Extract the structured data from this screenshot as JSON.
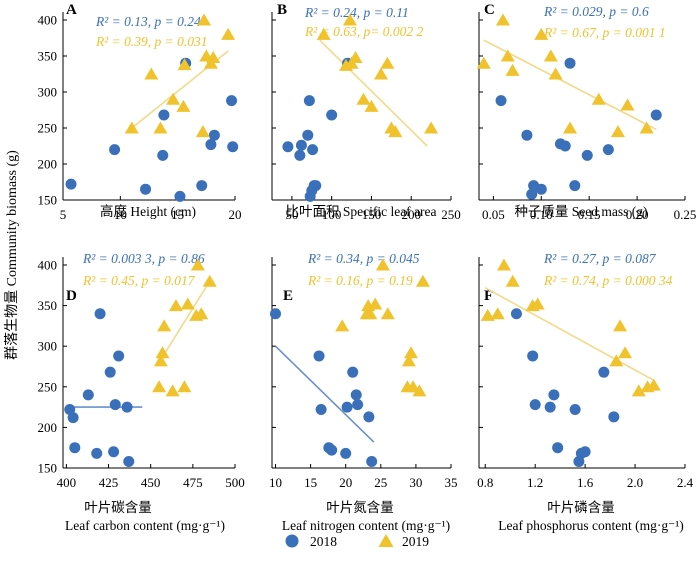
{
  "colors": {
    "s2018": "#3a6fba",
    "s2019": "#f0c22c",
    "trend2018": "#6a8fd0",
    "trend2019": "#f3d98a"
  },
  "ylabel": "群落生物量 Community biomass (g)",
  "legend": [
    {
      "name": "2018",
      "marker": "circle"
    },
    {
      "name": "2019",
      "marker": "triangle"
    }
  ],
  "chart_data": [
    {
      "type": "scatter",
      "letter": "A",
      "xlabel_zh": "高度 Height (cm)",
      "xlabel_en": "",
      "xlim": [
        5,
        20
      ],
      "xticks": [
        5,
        10,
        15,
        20
      ],
      "xtick_labels": [
        "5",
        "10",
        "15",
        "20"
      ],
      "ylim": [
        150,
        400
      ],
      "yticks": [
        150,
        200,
        250,
        300,
        350,
        400
      ],
      "stats": [
        {
          "series": "2018",
          "text": "R² = 0.13, p = 0.24"
        },
        {
          "series": "2019",
          "text": "R² = 0.39, p = 0.031"
        }
      ],
      "trend": [
        null,
        {
          "x": [
            11,
            19.4
          ],
          "y": [
            250,
            357
          ]
        }
      ],
      "series": [
        {
          "name": "2018",
          "points": [
            [
              5.7,
              172
            ],
            [
              9.5,
              220
            ],
            [
              12.2,
              165
            ],
            [
              13.7,
              212
            ],
            [
              13.8,
              268
            ],
            [
              15.2,
              155
            ],
            [
              15.7,
              340
            ],
            [
              17.1,
              170
            ],
            [
              17.9,
              227
            ],
            [
              18.2,
              240
            ],
            [
              19.7,
              288
            ],
            [
              19.8,
              224
            ]
          ]
        },
        {
          "name": "2019",
          "points": [
            [
              11,
              250
            ],
            [
              12.7,
              325
            ],
            [
              13.5,
              250
            ],
            [
              14.6,
              290
            ],
            [
              15.5,
              280
            ],
            [
              15.6,
              338
            ],
            [
              17.2,
              245
            ],
            [
              17.3,
              400
            ],
            [
              17.5,
              350
            ],
            [
              17.9,
              340
            ],
            [
              18.1,
              348
            ],
            [
              19.4,
              380
            ]
          ]
        }
      ]
    },
    {
      "type": "scatter",
      "letter": "B",
      "xlabel_zh": "比叶面积 Specific leaf area",
      "xlabel_en": "",
      "xlim": [
        25,
        250
      ],
      "xticks": [
        50,
        100,
        150,
        200,
        250
      ],
      "xtick_labels": [
        "50",
        "100",
        "150",
        "200",
        "250"
      ],
      "ylim": [
        150,
        400
      ],
      "yticks": [
        150,
        200,
        250,
        300,
        350,
        400
      ],
      "stats": [
        {
          "series": "2018",
          "text": "R² = 0.24, p = 0.11"
        },
        {
          "series": "2019",
          "text": "R² = 0.63, p= 0.002 2"
        }
      ],
      "trend": [
        null,
        {
          "x": [
            85,
            220
          ],
          "y": [
            372,
            225
          ]
        }
      ],
      "series": [
        {
          "name": "2018",
          "points": [
            [
              45,
              224
            ],
            [
              60,
              212
            ],
            [
              62,
              226
            ],
            [
              70,
              240
            ],
            [
              72,
              288
            ],
            [
              73,
              155
            ],
            [
              75,
              163
            ],
            [
              76,
              220
            ],
            [
              78,
              170
            ],
            [
              80,
              170
            ],
            [
              100,
              268
            ],
            [
              120,
              340
            ]
          ]
        },
        {
          "name": "2019",
          "points": [
            [
              90,
              380
            ],
            [
              118,
              337
            ],
            [
              123,
              400
            ],
            [
              125,
              340
            ],
            [
              130,
              348
            ],
            [
              140,
              290
            ],
            [
              150,
              280
            ],
            [
              162,
              325
            ],
            [
              170,
              340
            ],
            [
              175,
              250
            ],
            [
              180,
              245
            ],
            [
              225,
              250
            ]
          ]
        }
      ]
    },
    {
      "type": "scatter",
      "letter": "C",
      "xlabel_zh": "种子质量 Seed mass (g)",
      "xlabel_en": "",
      "xlim": [
        0.035,
        0.25
      ],
      "xticks": [
        0.05,
        0.1,
        0.15,
        0.2,
        0.25
      ],
      "xtick_labels": [
        "0.05",
        "0.10",
        "0.15",
        "0.20",
        "0.25"
      ],
      "ylim": [
        150,
        400
      ],
      "yticks": [
        150,
        200,
        250,
        300,
        350,
        400
      ],
      "stats": [
        {
          "series": "2018",
          "text": "R² = 0.029, p = 0.6"
        },
        {
          "series": "2019",
          "text": "R² = 0.67, p = 0.001 1"
        }
      ],
      "trend": [
        null,
        {
          "x": [
            0.04,
            0.22
          ],
          "y": [
            372,
            248
          ]
        }
      ],
      "series": [
        {
          "name": "2018",
          "points": [
            [
              0.058,
              288
            ],
            [
              0.085,
              240
            ],
            [
              0.09,
              158
            ],
            [
              0.092,
              170
            ],
            [
              0.1,
              165
            ],
            [
              0.12,
              228
            ],
            [
              0.125,
              225
            ],
            [
              0.13,
              340
            ],
            [
              0.135,
              170
            ],
            [
              0.148,
              212
            ],
            [
              0.17,
              220
            ],
            [
              0.22,
              268
            ]
          ]
        },
        {
          "name": "2019",
          "points": [
            [
              0.04,
              340
            ],
            [
              0.06,
              400
            ],
            [
              0.065,
              350
            ],
            [
              0.07,
              330
            ],
            [
              0.1,
              380
            ],
            [
              0.11,
              350
            ],
            [
              0.115,
              325
            ],
            [
              0.13,
              250
            ],
            [
              0.16,
              290
            ],
            [
              0.18,
              245
            ],
            [
              0.19,
              282
            ],
            [
              0.21,
              250
            ]
          ]
        }
      ]
    },
    {
      "type": "scatter",
      "letter": "D",
      "xlabel_zh": "叶片碳含量",
      "xlabel_en": "Leaf carbon content (mg·g⁻¹)",
      "xlim": [
        398,
        500
      ],
      "xticks": [
        400,
        425,
        450,
        475,
        500
      ],
      "xtick_labels": [
        "400",
        "425",
        "450",
        "475",
        "500"
      ],
      "ylim": [
        150,
        400
      ],
      "yticks": [
        150,
        200,
        250,
        300,
        350,
        400
      ],
      "stats": [
        {
          "series": "2018",
          "text": "R² = 0.003 3, p = 0.86"
        },
        {
          "series": "2019",
          "text": "R² = 0.45, p = 0.017"
        }
      ],
      "trend": [
        {
          "x": [
            402,
            445
          ],
          "y": [
            225,
            225
          ]
        },
        {
          "x": [
            455,
            485
          ],
          "y": [
            280,
            380
          ]
        }
      ],
      "series": [
        {
          "name": "2018",
          "points": [
            [
              402,
              222
            ],
            [
              404,
              212
            ],
            [
              405,
              175
            ],
            [
              413,
              240
            ],
            [
              418,
              168
            ],
            [
              420,
              340
            ],
            [
              426,
              268
            ],
            [
              428,
              170
            ],
            [
              429,
              228
            ],
            [
              431,
              288
            ],
            [
              436,
              225
            ],
            [
              437,
              158
            ]
          ]
        },
        {
          "name": "2019",
          "points": [
            [
              455,
              250
            ],
            [
              456,
              282
            ],
            [
              457,
              292
            ],
            [
              458,
              325
            ],
            [
              463,
              245
            ],
            [
              465,
              350
            ],
            [
              470,
              250
            ],
            [
              472,
              352
            ],
            [
              477,
              338
            ],
            [
              478,
              400
            ],
            [
              480,
              340
            ],
            [
              485,
              380
            ]
          ]
        }
      ]
    },
    {
      "type": "scatter",
      "letter": "E",
      "xlabel_zh": "叶片氮含量",
      "xlabel_en": "Leaf nitrogen content (mg·g⁻¹)",
      "xlim": [
        9.5,
        35
      ],
      "xticks": [
        10,
        15,
        20,
        25,
        30,
        35
      ],
      "xtick_labels": [
        "10",
        "15",
        "20",
        "25",
        "30",
        "35"
      ],
      "ylim": [
        150,
        400
      ],
      "yticks": [
        150,
        200,
        250,
        300,
        350,
        400
      ],
      "stats": [
        {
          "series": "2018",
          "text": "R² = 0.34, p = 0.045"
        },
        {
          "series": "2019",
          "text": "R² = 0.16, p = 0.19"
        }
      ],
      "trend": [
        {
          "x": [
            10,
            24
          ],
          "y": [
            300,
            182
          ]
        },
        null
      ],
      "series": [
        {
          "name": "2018",
          "points": [
            [
              10,
              340
            ],
            [
              16.2,
              288
            ],
            [
              16.5,
              222
            ],
            [
              17.6,
              175
            ],
            [
              18,
              172
            ],
            [
              20,
              168
            ],
            [
              20.2,
              225
            ],
            [
              21,
              268
            ],
            [
              21.5,
              240
            ],
            [
              21.7,
              228
            ],
            [
              23.3,
              213
            ],
            [
              23.7,
              158
            ]
          ]
        },
        {
          "name": "2019",
          "points": [
            [
              19.5,
              325
            ],
            [
              23,
              340
            ],
            [
              23.2,
              350
            ],
            [
              23.5,
              340
            ],
            [
              24.2,
              352
            ],
            [
              25.3,
              400
            ],
            [
              26,
              340
            ],
            [
              28.8,
              250
            ],
            [
              29,
              282
            ],
            [
              29.3,
              292
            ],
            [
              29.6,
              250
            ],
            [
              30.5,
              245
            ],
            [
              31,
              380
            ]
          ]
        }
      ]
    },
    {
      "type": "scatter",
      "letter": "F",
      "xlabel_zh": "叶片磷含量",
      "xlabel_en": "Leaf phosphorus content (mg·g⁻¹)",
      "xlim": [
        0.75,
        2.4
      ],
      "xticks": [
        0.8,
        1.2,
        1.6,
        2.0,
        2.4
      ],
      "xtick_labels": [
        "0.8",
        "1.2",
        "1.6",
        "2.0",
        "2.4"
      ],
      "ylim": [
        150,
        400
      ],
      "yticks": [
        150,
        200,
        250,
        300,
        350,
        400
      ],
      "stats": [
        {
          "series": "2018",
          "text": "R² = 0.27, p = 0.087"
        },
        {
          "series": "2019",
          "text": "R² = 0.74, p = 0.000 34"
        }
      ],
      "trend": [
        null,
        {
          "x": [
            0.8,
            2.15
          ],
          "y": [
            372,
            258
          ]
        }
      ],
      "series": [
        {
          "name": "2018",
          "points": [
            [
              1.05,
              340
            ],
            [
              1.18,
              288
            ],
            [
              1.2,
              228
            ],
            [
              1.32,
              225
            ],
            [
              1.35,
              240
            ],
            [
              1.38,
              175
            ],
            [
              1.52,
              222
            ],
            [
              1.55,
              158
            ],
            [
              1.57,
              168
            ],
            [
              1.6,
              170
            ],
            [
              1.75,
              268
            ],
            [
              1.83,
              213
            ]
          ]
        },
        {
          "name": "2019",
          "points": [
            [
              0.82,
              338
            ],
            [
              0.9,
              340
            ],
            [
              0.95,
              400
            ],
            [
              1.02,
              380
            ],
            [
              1.18,
              350
            ],
            [
              1.22,
              352
            ],
            [
              1.85,
              282
            ],
            [
              1.88,
              325
            ],
            [
              1.92,
              292
            ],
            [
              2.03,
              245
            ],
            [
              2.1,
              250
            ],
            [
              2.15,
              252
            ]
          ]
        }
      ]
    }
  ]
}
